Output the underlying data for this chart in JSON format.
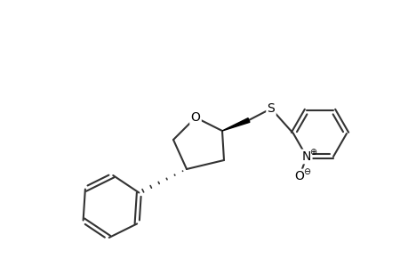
{
  "figsize": [
    4.6,
    3.0
  ],
  "dpi": 100,
  "bg_color": "#ffffff",
  "line_color": "#333333",
  "lw": 1.5,
  "lw_thick": 4.0,
  "atom_labels": {
    "O": {
      "text": "O",
      "fontsize": 11
    },
    "S": {
      "text": "S",
      "fontsize": 11
    },
    "N_plus": {
      "text": "N",
      "fontsize": 11
    },
    "O_minus": {
      "text": "O",
      "fontsize": 11
    },
    "plus": {
      "text": "⊕",
      "fontsize": 7
    },
    "minus": {
      "text": "⊖",
      "fontsize": 7
    }
  }
}
